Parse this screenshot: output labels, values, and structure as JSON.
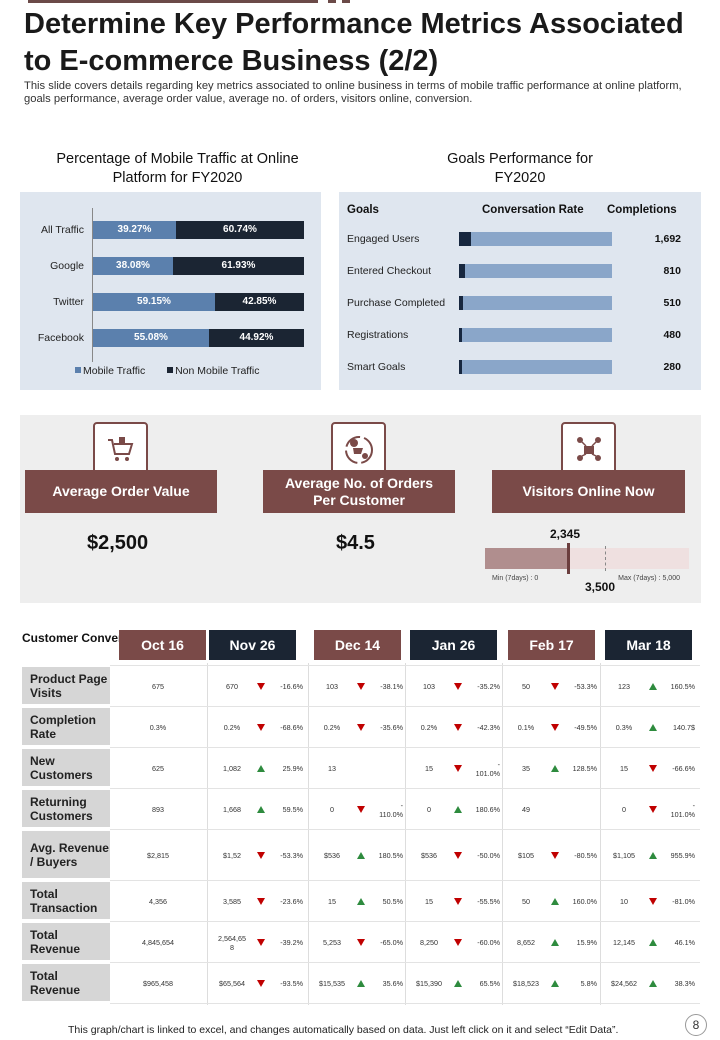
{
  "header": {
    "title": "Determine Key Performance Metrics Associated to E-commerce Business (2/2)",
    "subtitle": "This slide covers details regarding key metrics associated to online business in terms of mobile traffic performance at online platform, goals performance, average order value, average no. of orders, visitors online, conversion."
  },
  "mobile": {
    "title": "Percentage of Mobile Traffic at Online Platform for FY2020",
    "legend": [
      "Mobile Traffic",
      "Non Mobile Traffic"
    ],
    "colors": {
      "mobile": "#5b80ad",
      "non_mobile": "#1b2533"
    }
  },
  "chart_data": {
    "type": "bar",
    "stacked": true,
    "orientation": "horizontal",
    "categories": [
      "All Traffic",
      "Google",
      "Twitter",
      "Facebook"
    ],
    "series": [
      {
        "name": "Mobile Traffic",
        "values": [
          39.27,
          38.08,
          59.15,
          55.08
        ],
        "labels": [
          "39.27%",
          "38.08%",
          "59.15%",
          "55.08%"
        ]
      },
      {
        "name": "Non Mobile Traffic",
        "values": [
          60.74,
          61.93,
          42.85,
          44.92
        ],
        "labels": [
          "60.74%",
          "61.93%",
          "42.85%",
          "44.92%"
        ]
      }
    ],
    "legend_position": "bottom"
  },
  "goals": {
    "title": "Goals Performance for FY2020",
    "headers": [
      "Goals",
      "Conversation Rate",
      "Completions"
    ],
    "rows": [
      {
        "label": "Engaged Users",
        "rate": 0.08,
        "value": "1,692"
      },
      {
        "label": "Entered Checkout",
        "rate": 0.04,
        "value": "810"
      },
      {
        "label": "Purchase Completed",
        "rate": 0.025,
        "value": "510"
      },
      {
        "label": "Registrations",
        "rate": 0.022,
        "value": "480"
      },
      {
        "label": "Smart Goals",
        "rate": 0.015,
        "value": "280"
      }
    ]
  },
  "kpis": {
    "aov": {
      "label": "Average Order Value",
      "value": "$2,500",
      "icon": "cart-icon"
    },
    "orders": {
      "label": "Average No. of Orders Per Customer",
      "value": "$4.5",
      "icon": "order-cycle-icon"
    },
    "visitors": {
      "label": "Visitors Online Now",
      "icon": "network-users-icon",
      "current": "2,345",
      "max_value": "3,500",
      "min_label": "Min (7days) : 0",
      "max_label": "Max (7days) : 5,000",
      "level": 0.4
    }
  },
  "conversion": {
    "title": "Customer Conversion",
    "columns": [
      "Oct 16",
      "Nov 26",
      "Dec 14",
      "Jan 26",
      "Feb 17",
      "Mar 18"
    ],
    "column_colors": [
      "#7a4a48",
      "#1b2533",
      "#7a4a48",
      "#1b2533",
      "#7a4a48",
      "#1b2533"
    ],
    "rows": [
      {
        "label": "Product Page Visits",
        "cells": [
          [
            "675",
            "",
            ""
          ],
          [
            "670",
            "down",
            "-16.6%"
          ],
          [
            "103",
            "down",
            "-38.1%"
          ],
          [
            "103",
            "down",
            "-35.2%"
          ],
          [
            "50",
            "down",
            "-53.3%"
          ],
          [
            "123",
            "up",
            "160.5%"
          ]
        ]
      },
      {
        "label": "Completion Rate",
        "cells": [
          [
            "0.3%",
            "",
            ""
          ],
          [
            "0.2%",
            "down",
            "-68.6%"
          ],
          [
            "0.2%",
            "down",
            "-35.6%"
          ],
          [
            "0.2%",
            "down",
            "-42.3%"
          ],
          [
            "0.1%",
            "down",
            "-49.5%"
          ],
          [
            "0.3%",
            "up",
            "140.7$"
          ]
        ]
      },
      {
        "label": "New Customers",
        "cells": [
          [
            "625",
            "",
            ""
          ],
          [
            "1,082",
            "up",
            "25.9%"
          ],
          [
            "13",
            "",
            ""
          ],
          [
            "15",
            "down",
            "-\n101.0%"
          ],
          [
            "35",
            "up",
            "128.5%"
          ],
          [
            "15",
            "down",
            "-66.6%"
          ]
        ]
      },
      {
        "label": "Returning Customers",
        "cells": [
          [
            "893",
            "",
            ""
          ],
          [
            "1,668",
            "up",
            "59.5%"
          ],
          [
            "0",
            "down",
            "-\n110.0%"
          ],
          [
            "0",
            "up",
            "180.6%"
          ],
          [
            "49",
            "",
            ""
          ],
          [
            "0",
            "down",
            "-\n101.0%"
          ]
        ]
      },
      {
        "label": "Avg. Revenue / Buyers",
        "cells": [
          [
            "$2,815",
            "",
            ""
          ],
          [
            "$1,52",
            "down",
            "-53.3%"
          ],
          [
            "$536",
            "up",
            "180.5%"
          ],
          [
            "$536",
            "down",
            "-50.0%"
          ],
          [
            "$105",
            "down",
            "-80.5%"
          ],
          [
            "$1,105",
            "up",
            "955.9%"
          ]
        ]
      },
      {
        "label": "Total Transaction",
        "cells": [
          [
            "4,356",
            "",
            ""
          ],
          [
            "3,585",
            "down",
            "-23.6%"
          ],
          [
            "15",
            "up",
            "50.5%"
          ],
          [
            "15",
            "down",
            "-55.5%"
          ],
          [
            "50",
            "up",
            "160.0%"
          ],
          [
            "10",
            "down",
            "-81.0%"
          ]
        ]
      },
      {
        "label": "Total Revenue",
        "cells": [
          [
            "4,845,654",
            "",
            ""
          ],
          [
            "2,564,65\n8",
            "down",
            "-39.2%"
          ],
          [
            "5,253",
            "down",
            "-65.0%"
          ],
          [
            "8,250",
            "down",
            "-60.0%"
          ],
          [
            "8,652",
            "up",
            "15.9%"
          ],
          [
            "12,145",
            "up",
            "46.1%"
          ]
        ]
      },
      {
        "label": "Total Revenue",
        "cells": [
          [
            "$965,458",
            "",
            ""
          ],
          [
            "$65,564",
            "down",
            "-93.5%"
          ],
          [
            "$15,535",
            "up",
            "35.6%"
          ],
          [
            "$15,390",
            "up",
            "65.5%"
          ],
          [
            "$18,523",
            "up",
            "5.8%"
          ],
          [
            "$24,562",
            "up",
            "38.3%"
          ]
        ]
      }
    ]
  },
  "footer": {
    "note": "This graph/chart is linked to excel, and changes automatically based on data. Just left click on it and select “Edit Data”.",
    "page": "8"
  }
}
